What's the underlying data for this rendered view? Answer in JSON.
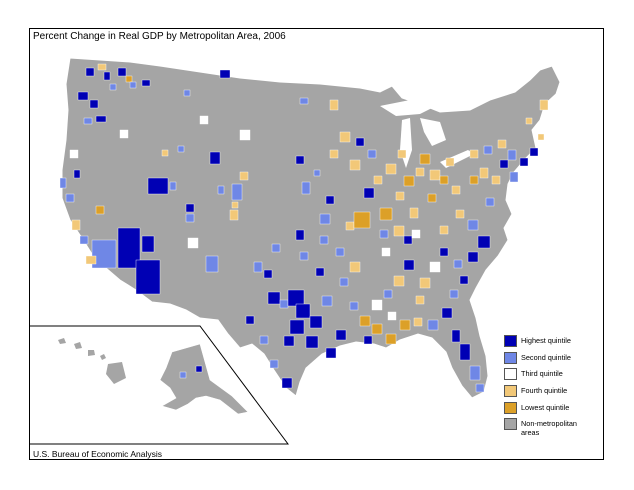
{
  "title": "Percent Change in Real GDP by Metropolitan Area, 2006",
  "source": "U.S. Bureau of Economic Analysis",
  "legend": [
    {
      "label": "Highest quintile",
      "color": "#0000b4",
      "key": "q1"
    },
    {
      "label": "Second quintile",
      "color": "#6f87e6",
      "key": "q2"
    },
    {
      "label": "Third quintile",
      "color": "#ffffff",
      "key": "q3"
    },
    {
      "label": "Fourth quintile",
      "color": "#f2c878",
      "key": "q4"
    },
    {
      "label": "Lowest quintile",
      "color": "#dca028",
      "key": "q5"
    },
    {
      "label": "Non-metropolitan areas",
      "color": "#a5a5a5",
      "key": "nm"
    }
  ],
  "colors": {
    "non_metro": "#a5a5a5",
    "state_border": "#ffffff",
    "frame": "#000000",
    "q1": "#0000b4",
    "q2": "#6f87e6",
    "q3": "#ffffff",
    "q4": "#f2c878",
    "q5": "#dca028"
  }
}
